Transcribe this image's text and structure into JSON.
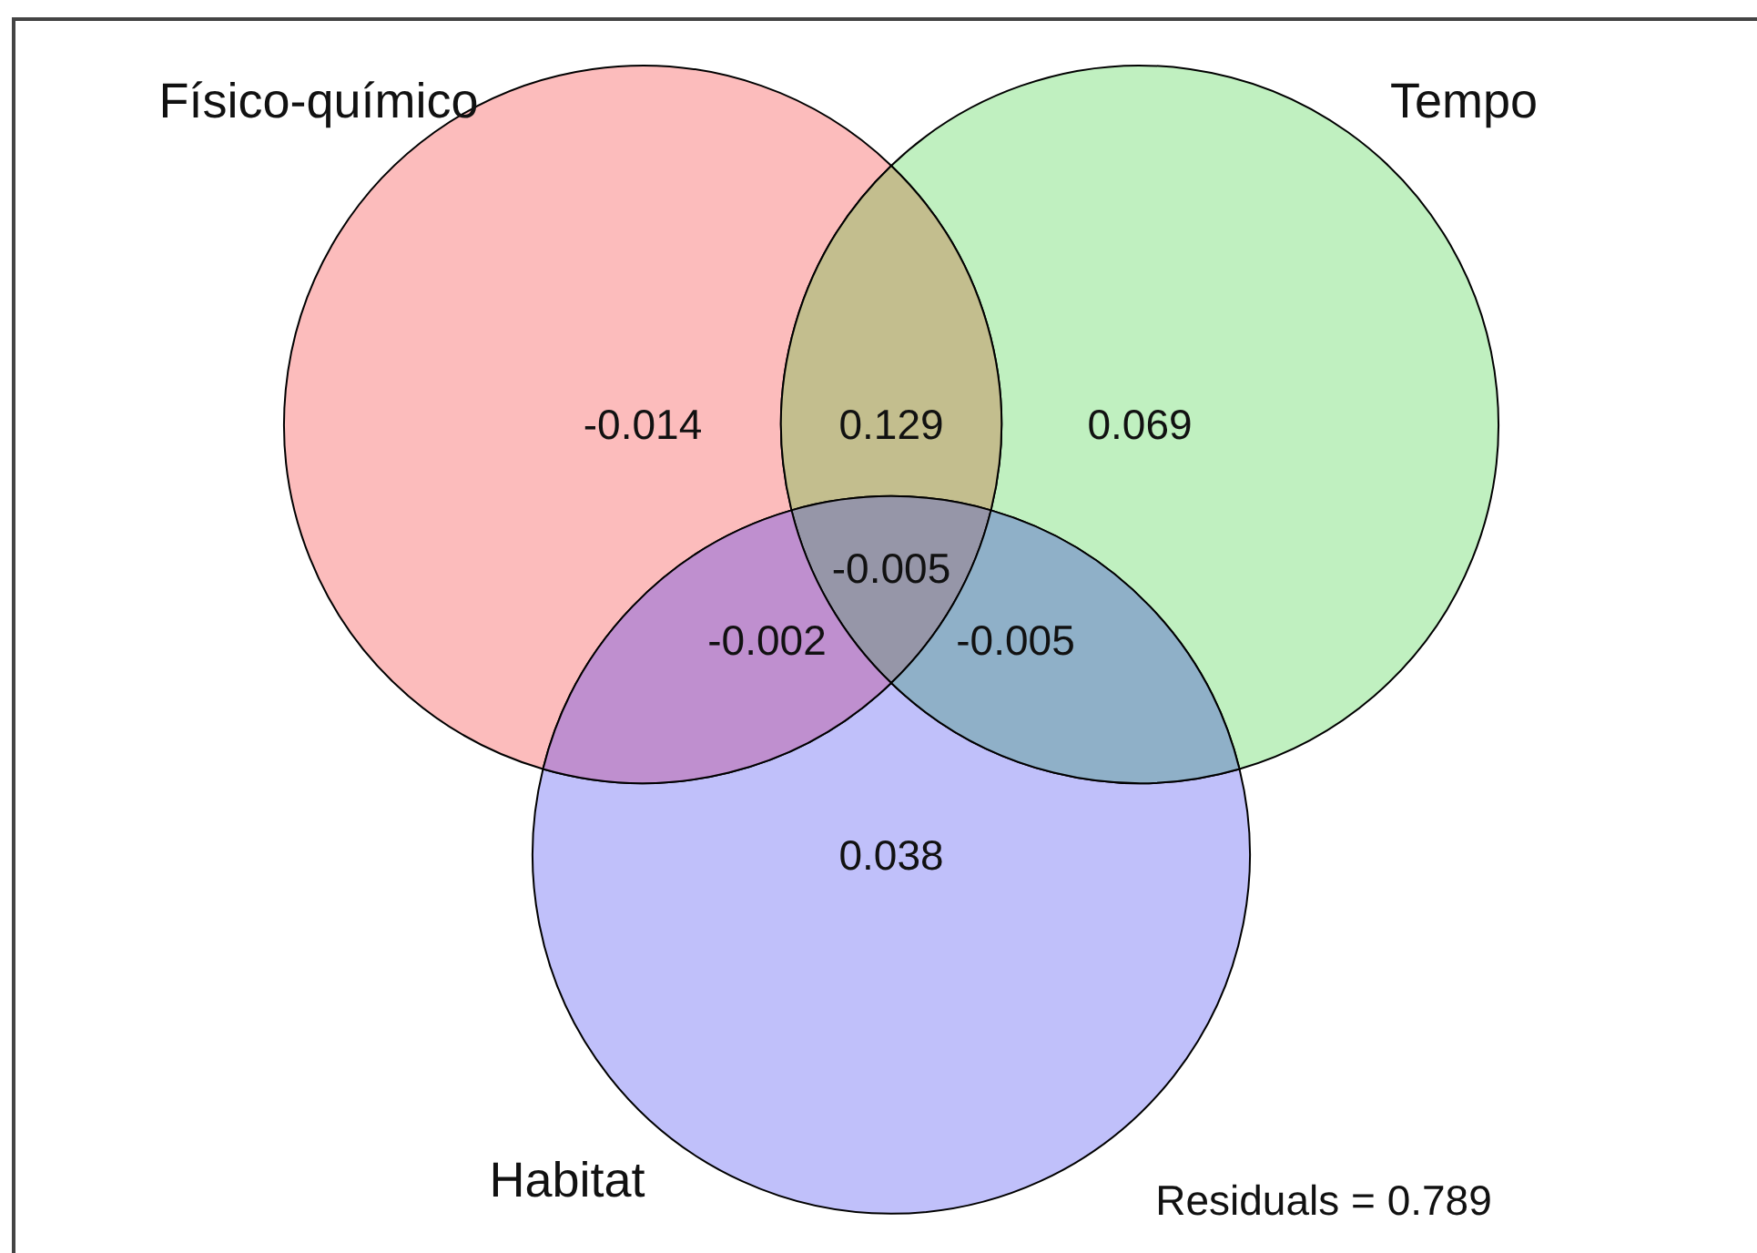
{
  "chart_data": {
    "type": "other",
    "categories": [
      null,
      null,
      null,
      null,
      null,
      null,
      null
    ],
    "values": [
      -0.014,
      0.129,
      0.069,
      -0.005,
      -0.002,
      -0.005,
      0.038
    ],
    "colors": [
      "#fcbcbc",
      "#c3be8e",
      "#c0f0c0",
      "#9696a8",
      "#bf8fcf",
      "#8fb0c8",
      "#c0c0fa"
    ],
    "data_labels": true,
    "annotations": [
      "Físico-químico",
      "Tempo",
      "Habitat",
      "Residuals = 0.789"
    ]
  }
}
